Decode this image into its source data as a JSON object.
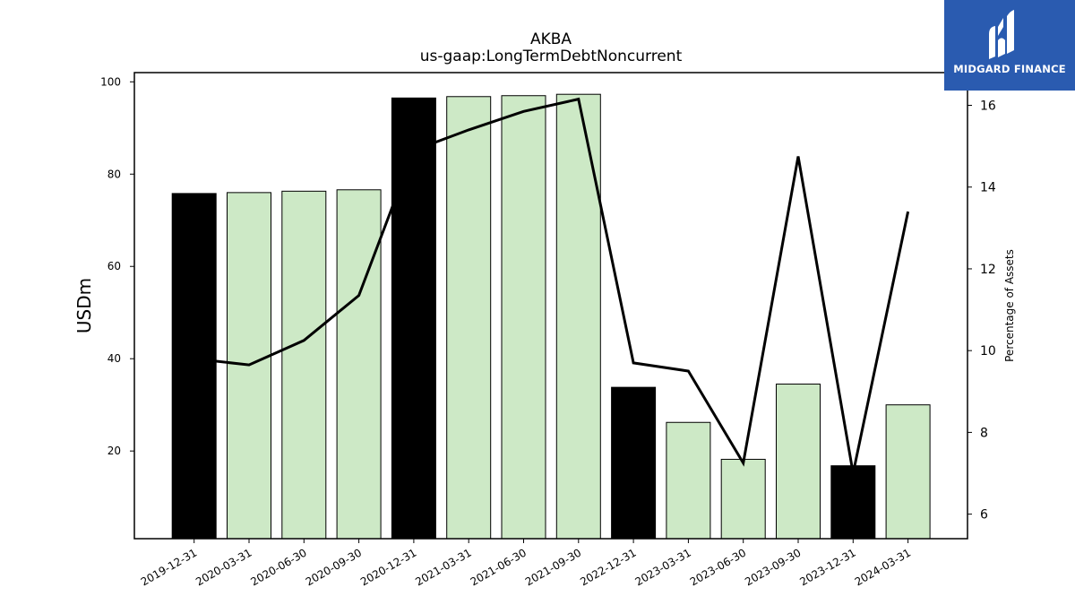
{
  "chart_data": {
    "type": "bar",
    "title": "AKBA",
    "subtitle": "us-gaap:LongTermDebtNoncurrent",
    "ylabel": "USDm",
    "y2label": "Percentage of Assets",
    "categories": [
      "2019-12-31",
      "2020-03-31",
      "2020-06-30",
      "2020-09-30",
      "2020-12-31",
      "2021-03-31",
      "2021-06-30",
      "2021-09-30",
      "2022-12-31",
      "2023-03-31",
      "2023-06-30",
      "2023-09-30",
      "2023-12-31",
      "2024-03-31"
    ],
    "series": [
      {
        "type": "bar",
        "values": [
          75.8,
          76.0,
          76.3,
          76.6,
          96.5,
          96.8,
          97.0,
          97.3,
          33.8,
          26.2,
          18.2,
          34.5,
          16.8,
          30.0
        ],
        "highlight": [
          true,
          false,
          false,
          false,
          true,
          false,
          false,
          false,
          true,
          false,
          false,
          false,
          true,
          false
        ],
        "colors": {
          "fill": "#cde9c6",
          "highlight": "#000000",
          "edge": "#000000"
        }
      },
      {
        "type": "line",
        "axis": "right",
        "values": [
          9.8,
          9.65,
          10.25,
          11.35,
          14.9,
          15.4,
          15.85,
          16.15,
          9.7,
          9.5,
          7.25,
          14.75,
          7.0,
          13.4
        ],
        "color": "#000000"
      }
    ],
    "ylim": [
      1,
      102
    ],
    "yticks": [
      20,
      40,
      60,
      80,
      100
    ],
    "y2lim": [
      5.4,
      16.8
    ],
    "y2ticks": [
      6,
      8,
      10,
      12,
      14,
      16
    ],
    "grid": false
  },
  "logo": {
    "text": "MIDGARD FINANCE"
  }
}
